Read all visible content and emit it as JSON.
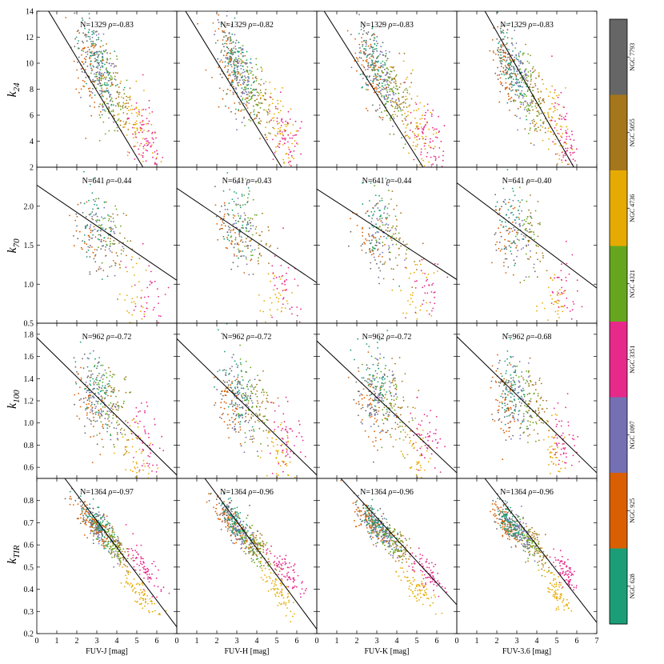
{
  "chart_data": {
    "type": "scatter",
    "title": "",
    "columns": [
      {
        "xlabel": "FUV-J [mag]",
        "xlim": [
          0,
          7
        ],
        "xticks": [
          0,
          1,
          2,
          3,
          4,
          5,
          6
        ]
      },
      {
        "xlabel": "FUV-H [mag]",
        "xlim": [
          0,
          7
        ],
        "xticks": [
          0,
          1,
          2,
          3,
          4,
          5,
          6
        ]
      },
      {
        "xlabel": "FUV-K [mag]",
        "xlim": [
          0,
          7
        ],
        "xticks": [
          0,
          1,
          2,
          3,
          4,
          5,
          6
        ]
      },
      {
        "xlabel": "FUV-3.6 [mag]",
        "xlim": [
          0,
          7
        ],
        "xticks": [
          0,
          1,
          2,
          3,
          4,
          5,
          6,
          7
        ]
      }
    ],
    "rows": [
      {
        "ylabel_main": "k",
        "ylabel_sub": "24",
        "ylim": [
          2,
          14
        ],
        "yticks": [
          2,
          4,
          6,
          8,
          10,
          12,
          14
        ],
        "N": 1329,
        "rho": [
          "-0.83",
          "-0.82",
          "-0.83",
          "-0.83"
        ],
        "fits": [
          [
            0,
            15.5,
            7,
            -2.3
          ],
          [
            0,
            15.1,
            7,
            -2.4
          ],
          [
            0,
            14.9,
            7,
            -2.1
          ],
          [
            0,
            17.8,
            7,
            -1.1
          ]
        ]
      },
      {
        "ylabel_main": "k",
        "ylabel_sub": "70",
        "ylim": [
          0.5,
          2.5
        ],
        "yticks": [
          0.5,
          1.0,
          1.5,
          2.0
        ],
        "N": 641,
        "rho": [
          "-0.44",
          "-0.43",
          "-0.44",
          "-0.40"
        ],
        "fits": [
          [
            0,
            2.27,
            7,
            1.05
          ],
          [
            0,
            2.23,
            7,
            1.02
          ],
          [
            0,
            2.22,
            7,
            1.06
          ],
          [
            0,
            2.3,
            7,
            0.95
          ]
        ]
      },
      {
        "ylabel_main": "k",
        "ylabel_sub": "100",
        "ylim": [
          0.5,
          1.9
        ],
        "yticks": [
          0.6,
          0.8,
          1.0,
          1.2,
          1.4,
          1.6,
          1.8
        ],
        "N": 962,
        "rho": [
          "-0.72",
          "-0.72",
          "-0.72",
          "-0.68"
        ],
        "fits": [
          [
            0,
            1.77,
            7,
            0.53
          ],
          [
            0,
            1.76,
            7,
            0.53
          ],
          [
            0,
            1.74,
            7,
            0.55
          ],
          [
            0,
            1.78,
            7,
            0.55
          ]
        ]
      },
      {
        "ylabel_main": "k",
        "ylabel_sub": "TIR",
        "ylim": [
          0.2,
          0.9
        ],
        "yticks": [
          0.2,
          0.3,
          0.4,
          0.5,
          0.6,
          0.7,
          0.8
        ],
        "N": 1364,
        "rho": [
          "-0.97",
          "-0.96",
          "-0.96",
          "-0.96"
        ],
        "fits": [
          [
            1.4,
            0.9,
            7,
            0.23
          ],
          [
            1.4,
            0.9,
            7,
            0.22
          ],
          [
            1.2,
            0.9,
            7,
            0.33
          ],
          [
            1.4,
            0.9,
            7,
            0.25
          ]
        ]
      }
    ],
    "legend": {
      "position": "right",
      "entries": [
        {
          "name": "NGC 7793",
          "color": "#666666"
        },
        {
          "name": "NGC 5055",
          "color": "#a6761d"
        },
        {
          "name": "NGC 4736",
          "color": "#e6ab02"
        },
        {
          "name": "NGC 4321",
          "color": "#66a61e"
        },
        {
          "name": "NGC 3351",
          "color": "#e7298a"
        },
        {
          "name": "NGC 1097",
          "color": "#7570b3"
        },
        {
          "name": "NGC 925",
          "color": "#d95f02"
        },
        {
          "name": "NGC 628",
          "color": "#1b9e77"
        }
      ]
    },
    "galaxy_centers": [
      {
        "name": "NGC 7793",
        "x": 2.8,
        "k": [
          10.2,
          1.6,
          1.22,
          0.71
        ]
      },
      {
        "name": "NGC 5055",
        "x": 4.0,
        "k": [
          7.3,
          1.55,
          1.15,
          0.6
        ]
      },
      {
        "name": "NGC 4736",
        "x": 5.0,
        "k": [
          5.3,
          0.8,
          0.68,
          0.4
        ]
      },
      {
        "name": "NGC 4321",
        "x": 3.6,
        "k": [
          8.0,
          1.7,
          1.2,
          0.62
        ]
      },
      {
        "name": "NGC 3351",
        "x": 5.5,
        "k": [
          4.0,
          0.9,
          0.85,
          0.48
        ]
      },
      {
        "name": "NGC 1097",
        "x": 3.2,
        "k": [
          9.0,
          1.65,
          1.2,
          0.66
        ]
      },
      {
        "name": "NGC 925",
        "x": 2.7,
        "k": [
          9.5,
          1.6,
          1.15,
          0.7
        ]
      },
      {
        "name": "NGC 628",
        "x": 3.0,
        "k": [
          9.8,
          1.85,
          1.35,
          0.7
        ]
      }
    ]
  }
}
